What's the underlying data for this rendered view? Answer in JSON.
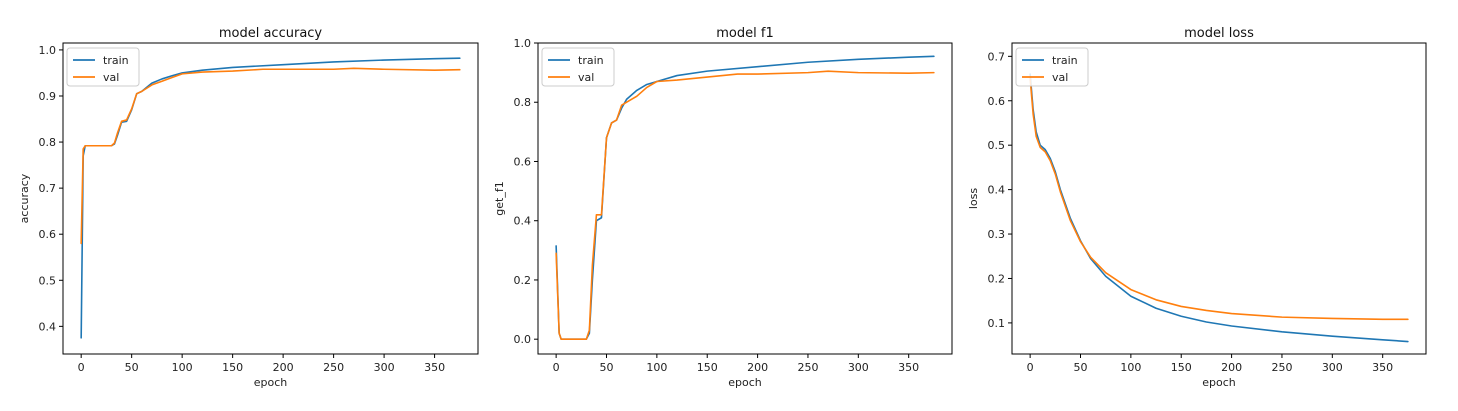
{
  "chart_data": [
    {
      "type": "line",
      "title": "model accuracy",
      "xlabel": "epoch",
      "ylabel": "accuracy",
      "xlim": [
        -18,
        393
      ],
      "ylim": [
        0.34,
        1.015
      ],
      "xticks": [
        0,
        50,
        100,
        150,
        200,
        250,
        300,
        350
      ],
      "yticks": [
        0.4,
        0.5,
        0.6,
        0.7,
        0.8,
        0.9,
        1.0
      ],
      "ytick_decimals": 1,
      "legend": "upper-left",
      "series": [
        {
          "name": "train",
          "color": "#1f77b4",
          "x": [
            0,
            2,
            4,
            10,
            20,
            30,
            33,
            36,
            40,
            45,
            50,
            55,
            60,
            70,
            80,
            90,
            100,
            120,
            150,
            200,
            250,
            300,
            350,
            375
          ],
          "y": [
            0.375,
            0.77,
            0.792,
            0.792,
            0.792,
            0.792,
            0.796,
            0.815,
            0.843,
            0.845,
            0.87,
            0.905,
            0.91,
            0.928,
            0.937,
            0.944,
            0.95,
            0.956,
            0.962,
            0.968,
            0.974,
            0.978,
            0.981,
            0.982
          ]
        },
        {
          "name": "val",
          "color": "#ff7f0e",
          "x": [
            0,
            2,
            4,
            10,
            20,
            30,
            33,
            36,
            40,
            45,
            50,
            55,
            60,
            70,
            80,
            90,
            100,
            120,
            150,
            180,
            200,
            250,
            270,
            300,
            350,
            375
          ],
          "y": [
            0.58,
            0.785,
            0.792,
            0.792,
            0.792,
            0.792,
            0.798,
            0.82,
            0.845,
            0.848,
            0.872,
            0.905,
            0.91,
            0.924,
            0.932,
            0.94,
            0.948,
            0.952,
            0.954,
            0.958,
            0.958,
            0.958,
            0.96,
            0.958,
            0.956,
            0.957
          ]
        }
      ]
    },
    {
      "type": "line",
      "title": "model f1",
      "xlabel": "epoch",
      "ylabel": "get_f1",
      "xlim": [
        -18,
        393
      ],
      "ylim": [
        -0.05,
        1.0
      ],
      "xticks": [
        0,
        50,
        100,
        150,
        200,
        250,
        300,
        350
      ],
      "yticks": [
        0.0,
        0.2,
        0.4,
        0.6,
        0.8,
        1.0
      ],
      "ytick_decimals": 1,
      "legend": "upper-left",
      "series": [
        {
          "name": "train",
          "color": "#1f77b4",
          "x": [
            0,
            3,
            5,
            10,
            20,
            30,
            33,
            36,
            40,
            45,
            50,
            55,
            60,
            65,
            70,
            80,
            90,
            100,
            120,
            150,
            200,
            250,
            300,
            350,
            375
          ],
          "y": [
            0.315,
            0.02,
            0.0,
            0.0,
            0.0,
            0.0,
            0.02,
            0.2,
            0.4,
            0.41,
            0.68,
            0.73,
            0.74,
            0.78,
            0.81,
            0.84,
            0.86,
            0.87,
            0.89,
            0.905,
            0.92,
            0.935,
            0.945,
            0.952,
            0.955
          ]
        },
        {
          "name": "val",
          "color": "#ff7f0e",
          "x": [
            0,
            3,
            5,
            10,
            20,
            30,
            33,
            36,
            40,
            45,
            50,
            55,
            60,
            65,
            70,
            80,
            90,
            100,
            120,
            150,
            180,
            200,
            250,
            270,
            300,
            350,
            375
          ],
          "y": [
            0.29,
            0.02,
            0.0,
            0.0,
            0.0,
            0.0,
            0.03,
            0.25,
            0.42,
            0.42,
            0.68,
            0.73,
            0.74,
            0.79,
            0.8,
            0.82,
            0.85,
            0.87,
            0.875,
            0.885,
            0.895,
            0.895,
            0.9,
            0.905,
            0.9,
            0.898,
            0.9
          ]
        }
      ]
    },
    {
      "type": "line",
      "title": "model loss",
      "xlabel": "epoch",
      "ylabel": "loss",
      "xlim": [
        -18,
        393
      ],
      "ylim": [
        0.03,
        0.73
      ],
      "xticks": [
        0,
        50,
        100,
        150,
        200,
        250,
        300,
        350
      ],
      "yticks": [
        0.1,
        0.2,
        0.3,
        0.4,
        0.5,
        0.6,
        0.7
      ],
      "ytick_decimals": 1,
      "legend": "upper-left",
      "series": [
        {
          "name": "train",
          "color": "#1f77b4",
          "x": [
            0,
            3,
            6,
            10,
            15,
            20,
            25,
            30,
            40,
            50,
            60,
            75,
            100,
            125,
            150,
            175,
            200,
            250,
            300,
            350,
            375
          ],
          "y": [
            0.66,
            0.58,
            0.53,
            0.5,
            0.49,
            0.47,
            0.44,
            0.4,
            0.335,
            0.285,
            0.245,
            0.205,
            0.16,
            0.133,
            0.115,
            0.102,
            0.093,
            0.08,
            0.07,
            0.062,
            0.058
          ]
        },
        {
          "name": "val",
          "color": "#ff7f0e",
          "x": [
            0,
            3,
            6,
            10,
            15,
            20,
            25,
            30,
            40,
            50,
            60,
            75,
            100,
            125,
            150,
            175,
            200,
            250,
            300,
            350,
            375
          ],
          "y": [
            0.65,
            0.57,
            0.52,
            0.495,
            0.485,
            0.465,
            0.435,
            0.395,
            0.33,
            0.283,
            0.248,
            0.213,
            0.175,
            0.152,
            0.137,
            0.128,
            0.121,
            0.113,
            0.11,
            0.108,
            0.108
          ]
        }
      ]
    }
  ]
}
